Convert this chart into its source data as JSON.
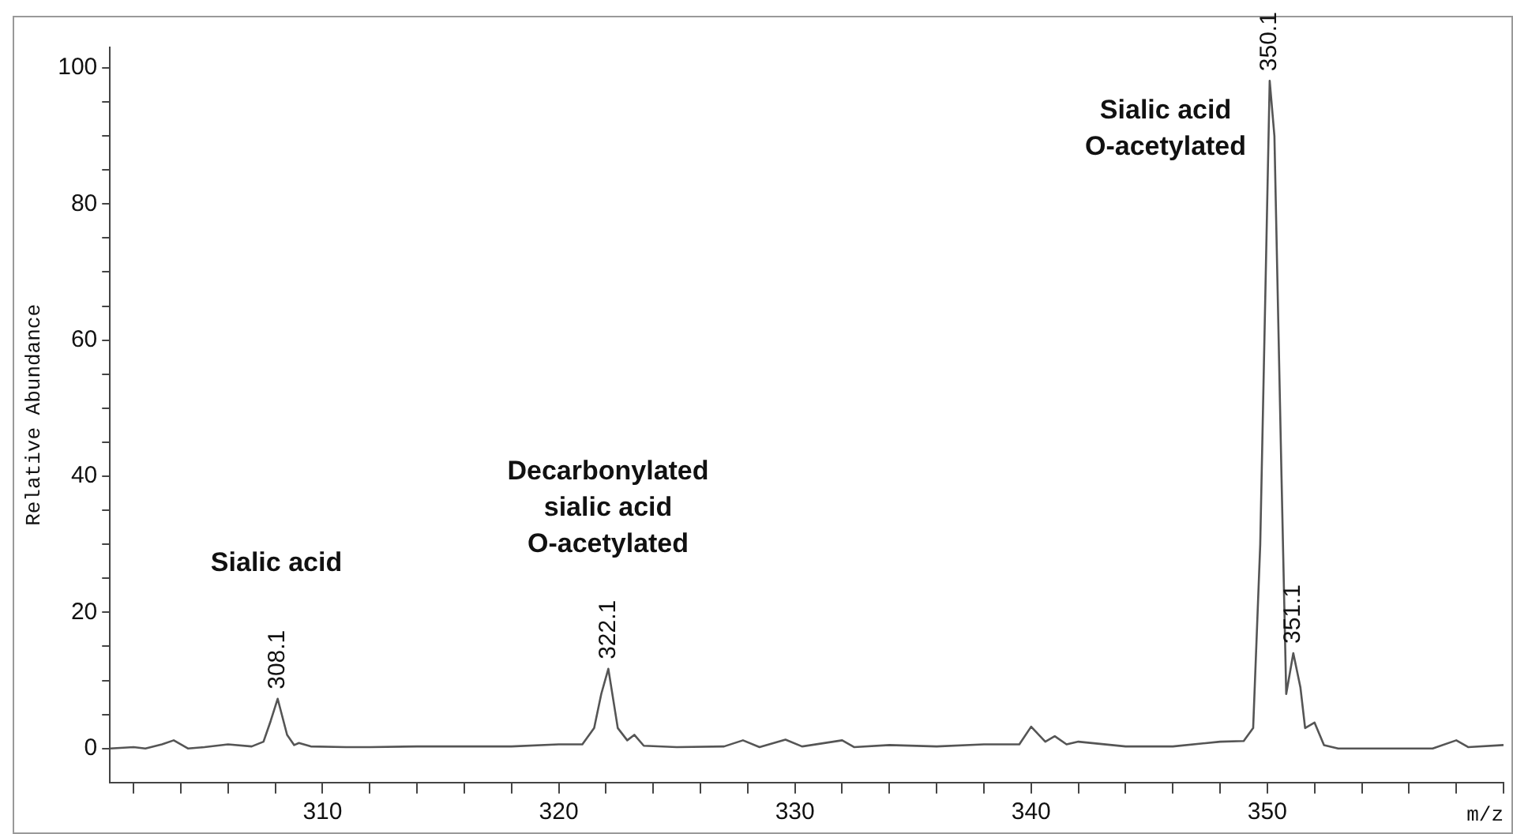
{
  "chart_data": {
    "type": "line",
    "xlabel": "m/z",
    "ylabel": "Relative Abundance",
    "xlim": [
      301,
      360
    ],
    "ylim": [
      -5,
      103
    ],
    "xticks": [
      {
        "value": 302,
        "label": null
      },
      {
        "value": 304,
        "label": null
      },
      {
        "value": 306,
        "label": null
      },
      {
        "value": 308,
        "label": null
      },
      310,
      {
        "value": 312,
        "label": null
      },
      {
        "value": 314,
        "label": null
      },
      {
        "value": 316,
        "label": null
      },
      {
        "value": 318,
        "label": null
      },
      320,
      {
        "value": 322,
        "label": null
      },
      {
        "value": 324,
        "label": null
      },
      {
        "value": 326,
        "label": null
      },
      {
        "value": 328,
        "label": null
      },
      330,
      {
        "value": 332,
        "label": null
      },
      {
        "value": 334,
        "label": null
      },
      {
        "value": 336,
        "label": null
      },
      {
        "value": 338,
        "label": null
      },
      340,
      {
        "value": 342,
        "label": null
      },
      {
        "value": 344,
        "label": null
      },
      {
        "value": 346,
        "label": null
      },
      {
        "value": 348,
        "label": null
      },
      350,
      {
        "value": 352,
        "label": null
      },
      {
        "value": 354,
        "label": null
      },
      {
        "value": 356,
        "label": null
      },
      {
        "value": 358,
        "label": null
      },
      {
        "value": 360,
        "label": null
      }
    ],
    "yticks": [
      0,
      {
        "value": 5,
        "label": null
      },
      {
        "value": 10,
        "label": null
      },
      {
        "value": 15,
        "label": null
      },
      20,
      {
        "value": 25,
        "label": null
      },
      {
        "value": 30,
        "label": null
      },
      {
        "value": 35,
        "label": null
      },
      40,
      {
        "value": 45,
        "label": null
      },
      {
        "value": 50,
        "label": null
      },
      {
        "value": 55,
        "label": null
      },
      60,
      {
        "value": 65,
        "label": null
      },
      {
        "value": 70,
        "label": null
      },
      {
        "value": 75,
        "label": null
      },
      80,
      {
        "value": 85,
        "label": null
      },
      {
        "value": 90,
        "label": null
      },
      {
        "value": 95,
        "label": null
      },
      100
    ],
    "grid": false,
    "legend": false,
    "marker": "none",
    "line_style": "solid",
    "series": [
      {
        "color": "#555555",
        "x": [
          301,
          302,
          302.5,
          303.2,
          303.7,
          304.3,
          305,
          306,
          307,
          307.5,
          307.8,
          308.1,
          308.5,
          308.8,
          309,
          309.5,
          311,
          312,
          314,
          318,
          320,
          321,
          321.5,
          321.8,
          322.1,
          322.5,
          322.9,
          323.2,
          323.6,
          325,
          327,
          327.8,
          328.5,
          329.6,
          330.3,
          332,
          332.5,
          334,
          336,
          338,
          339.5,
          340,
          340.6,
          341,
          341.5,
          342,
          344,
          346,
          348,
          349,
          349.4,
          349.7,
          350.1,
          350.3,
          350.6,
          350.8,
          351.1,
          351.4,
          351.6,
          352,
          352.4,
          353,
          357,
          358,
          358.5,
          360
        ],
        "values": [
          0,
          0.2,
          0,
          0.6,
          1.2,
          0,
          0.2,
          0.6,
          0.3,
          1,
          4,
          7.3,
          2,
          0.5,
          0.8,
          0.3,
          0.2,
          0.2,
          0.3,
          0.3,
          0.6,
          0.6,
          3,
          8,
          11.7,
          3,
          1.2,
          2,
          0.4,
          0.2,
          0.3,
          1.2,
          0.2,
          1.3,
          0.3,
          1.2,
          0.2,
          0.5,
          0.3,
          0.6,
          0.6,
          3.2,
          1,
          1.8,
          0.6,
          1,
          0.3,
          0.3,
          1,
          1.1,
          3,
          30,
          98.1,
          90,
          40,
          8,
          14,
          9,
          3,
          3.8,
          0.5,
          0,
          0,
          1.2,
          0.2,
          0.5
        ]
      }
    ],
    "annotations": [
      {
        "text": "308.1",
        "x": 308.1,
        "y": 7.3
      },
      {
        "text": "322.1",
        "x": 322.1,
        "y": 11.7
      },
      {
        "text": "350.1",
        "x": 350.1,
        "y": 98.1
      },
      {
        "text": "351.1",
        "x": 351.1,
        "y": 14
      },
      "Sialic acid",
      "Decarbonylated\nsialic acid\nO-acetylated",
      "Sialic acid\nO-acetylated"
    ]
  }
}
